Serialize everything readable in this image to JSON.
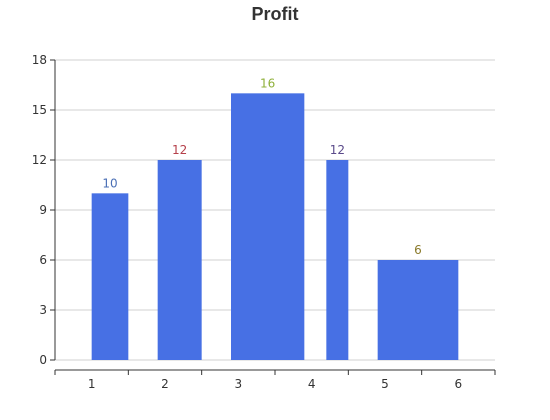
{
  "chart_data": {
    "type": "bar",
    "title": "Profit",
    "xlabel": "",
    "ylabel": "",
    "x_ticks": [
      "1",
      "2",
      "3",
      "4",
      "5",
      "6"
    ],
    "ylim": [
      0,
      18
    ],
    "y_ticks": [
      0,
      3,
      6,
      9,
      12,
      15,
      18
    ],
    "grid": true,
    "bar_color": "#4770E4",
    "bars": [
      {
        "x_start": 1.0,
        "x_end": 1.5,
        "value": 10,
        "label": "10",
        "label_color": "#4A6FB5"
      },
      {
        "x_start": 1.9,
        "x_end": 2.5,
        "value": 12,
        "label": "12",
        "label_color": "#B5404A"
      },
      {
        "x_start": 2.9,
        "x_end": 3.9,
        "value": 16,
        "label": "16",
        "label_color": "#8FB03A"
      },
      {
        "x_start": 4.2,
        "x_end": 4.5,
        "value": 12,
        "label": "12",
        "label_color": "#5A4A8A"
      },
      {
        "x_start": 4.9,
        "x_end": 6.0,
        "value": 6,
        "label": "6",
        "label_color": "#8A7A2A"
      }
    ]
  }
}
